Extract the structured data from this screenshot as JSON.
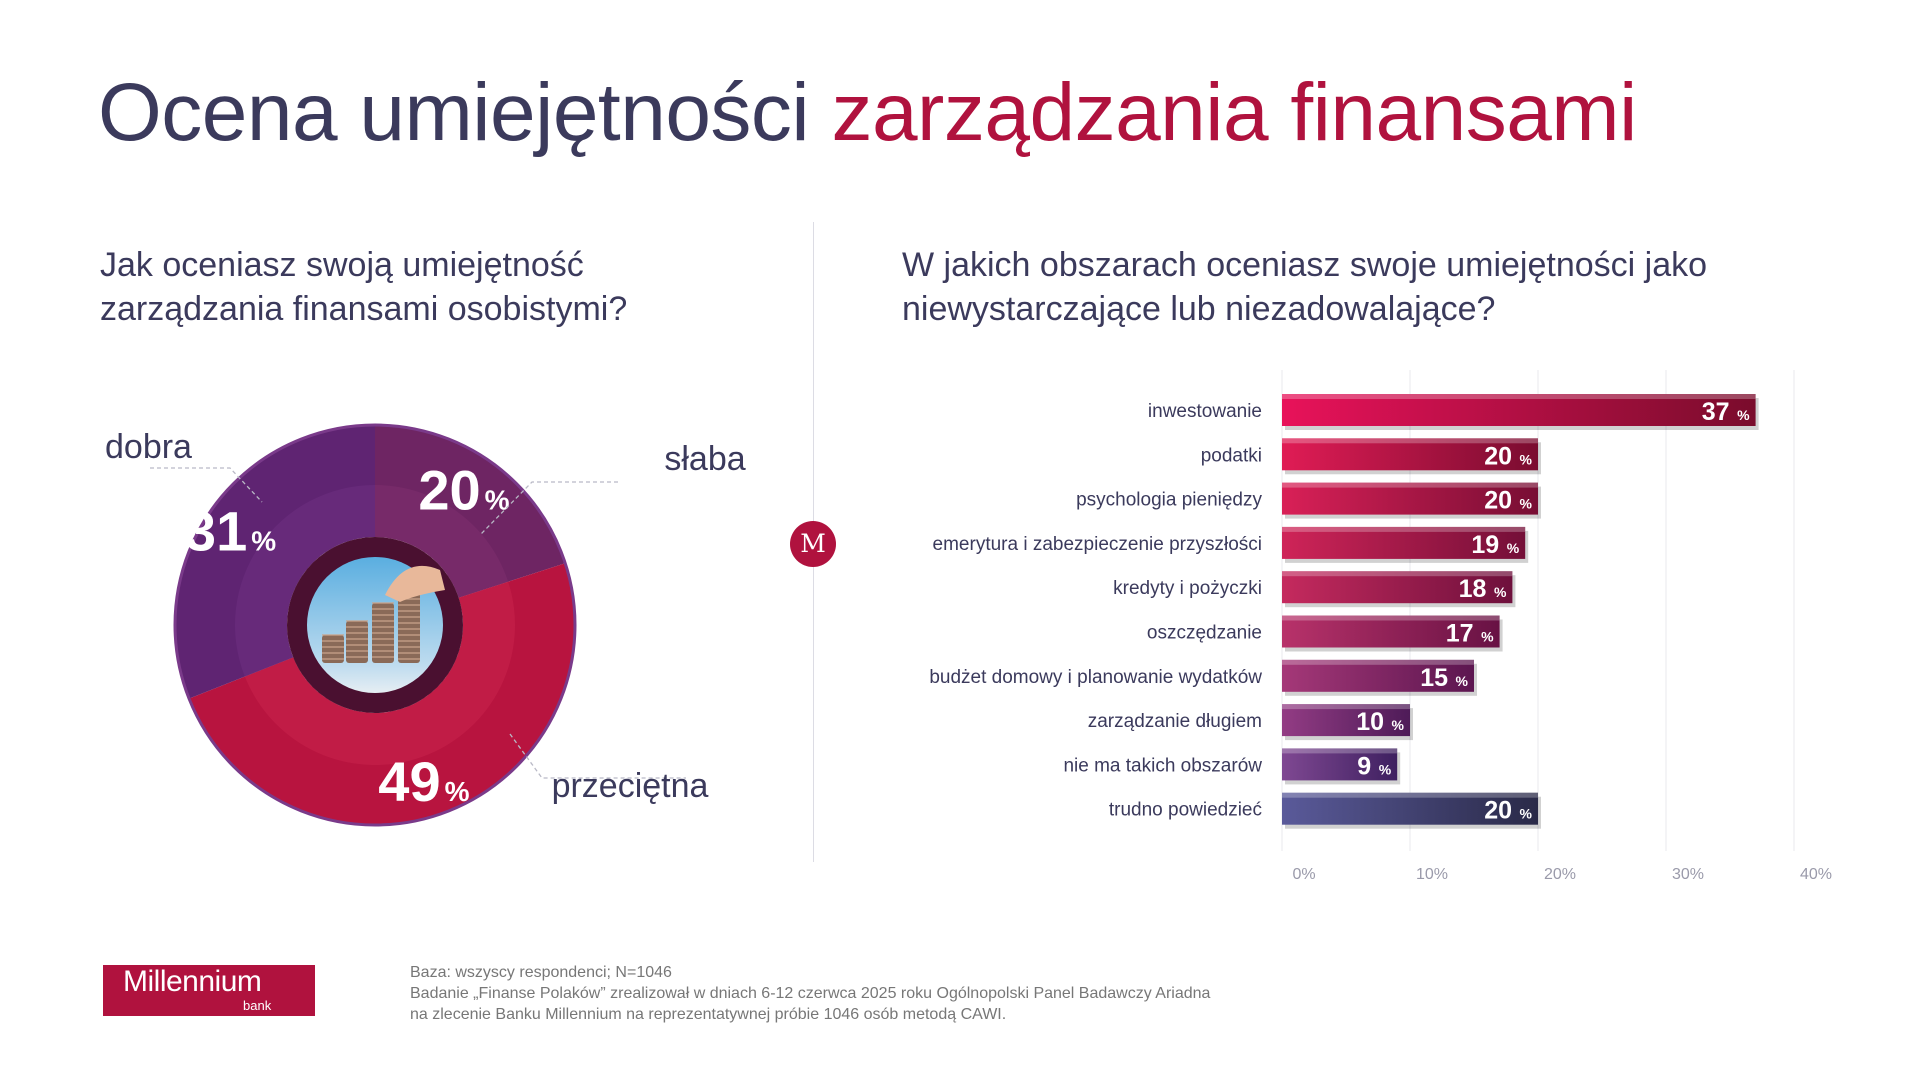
{
  "title": {
    "part1": "Ocena umiejętności",
    "part2": "zarządzania finansami"
  },
  "left_question": "Jak oceniasz swoją umiejętność zarządzania finansami osobistymi?",
  "right_question": "W jakich obszarach oceniasz swoje umiejętności jako niewystarczające lub niezadowalające?",
  "divider_logo": "M",
  "colors": {
    "title": "#3b3a5c",
    "accent": "#b0123e"
  },
  "chart_data": [
    {
      "type": "pie",
      "labels": [
        "słaba",
        "przeciętna",
        "dobra"
      ],
      "values": [
        20,
        49,
        31
      ],
      "value_labels": [
        "20",
        "49",
        "31"
      ],
      "percent_sign": "%",
      "colors": [
        "#6e2563",
        "#b8143f",
        "#5f2472"
      ]
    },
    {
      "type": "bar",
      "orientation": "horizontal",
      "categories": [
        "inwestowanie",
        "podatki",
        "psychologia pieniędzy",
        "emerytura i zabezpieczenie przyszłości",
        "kredyty i pożyczki",
        "oszczędzanie",
        "budżet domowy i planowanie wydatków",
        "zarządzanie długiem",
        "nie ma takich obszarów",
        "trudno powiedzieć"
      ],
      "values": [
        37,
        20,
        20,
        19,
        18,
        17,
        15,
        10,
        9,
        20
      ],
      "value_labels": [
        "37",
        "20",
        "20",
        "19",
        "18",
        "17",
        "15",
        "10",
        "9",
        "20"
      ],
      "percent_sign": "%",
      "xlim": [
        0,
        40
      ],
      "xticks": [
        "0%",
        "10%",
        "20%",
        "30%",
        "40%"
      ],
      "grid": true
    }
  ],
  "footnote": [
    "Baza: wszyscy respondenci; N=1046",
    "Badanie „Finanse Polaków” zrealizował w dniach 6-12 czerwca 2025 roku Ogólnopolski Panel Badawczy Ariadna",
    "na zlecenie Banku Millennium na reprezentatywnej próbie 1046 osób metodą CAWI."
  ],
  "brand": {
    "name": "Millennium",
    "sub": "bank"
  }
}
